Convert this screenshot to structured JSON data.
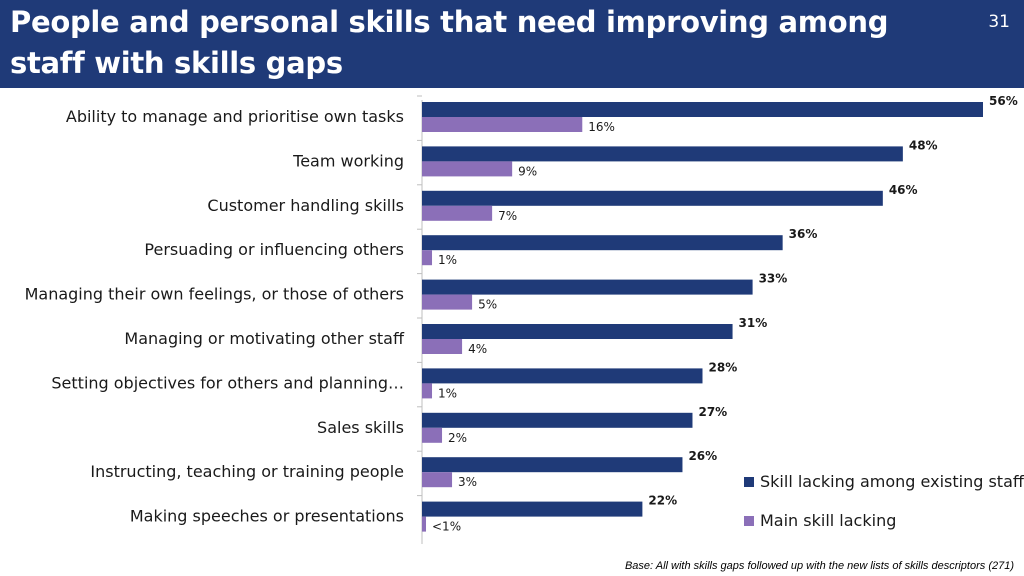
{
  "header": {
    "title": "People and personal skills that need improving among staff with skills gaps",
    "page_number": "31"
  },
  "footnote": "Base: All with skills gaps followed up with the new lists of skills descriptors (271)",
  "colors": {
    "header_bg": "#1f3a78",
    "series_existing": "#1f3a78",
    "series_main": "#8b6fb8"
  },
  "chart_data": {
    "type": "bar",
    "orientation": "horizontal",
    "categories": [
      "Ability to manage and prioritise own tasks",
      "Team working",
      "Customer handling skills",
      "Persuading or influencing others",
      "Managing their own feelings, or those of others",
      "Managing or motivating other staff",
      "Setting objectives for others and planning…",
      "Sales skills",
      "Instructing, teaching or training people",
      "Making speeches or presentations"
    ],
    "series": [
      {
        "name": "Skill lacking among existing staff",
        "values": [
          56,
          48,
          46,
          36,
          33,
          31,
          28,
          27,
          26,
          22
        ],
        "labels": [
          "56%",
          "48%",
          "46%",
          "36%",
          "33%",
          "31%",
          "28%",
          "27%",
          "26%",
          "22%"
        ]
      },
      {
        "name": "Main skill lacking",
        "values": [
          16,
          9,
          7,
          1,
          5,
          4,
          1,
          2,
          3,
          0.4
        ],
        "labels": [
          "16%",
          "9%",
          "7%",
          "1%",
          "5%",
          "4%",
          "1%",
          "2%",
          "3%",
          "<1%"
        ]
      }
    ],
    "xlim": [
      0,
      60
    ],
    "grid": false,
    "legend_position": "bottom-right"
  }
}
